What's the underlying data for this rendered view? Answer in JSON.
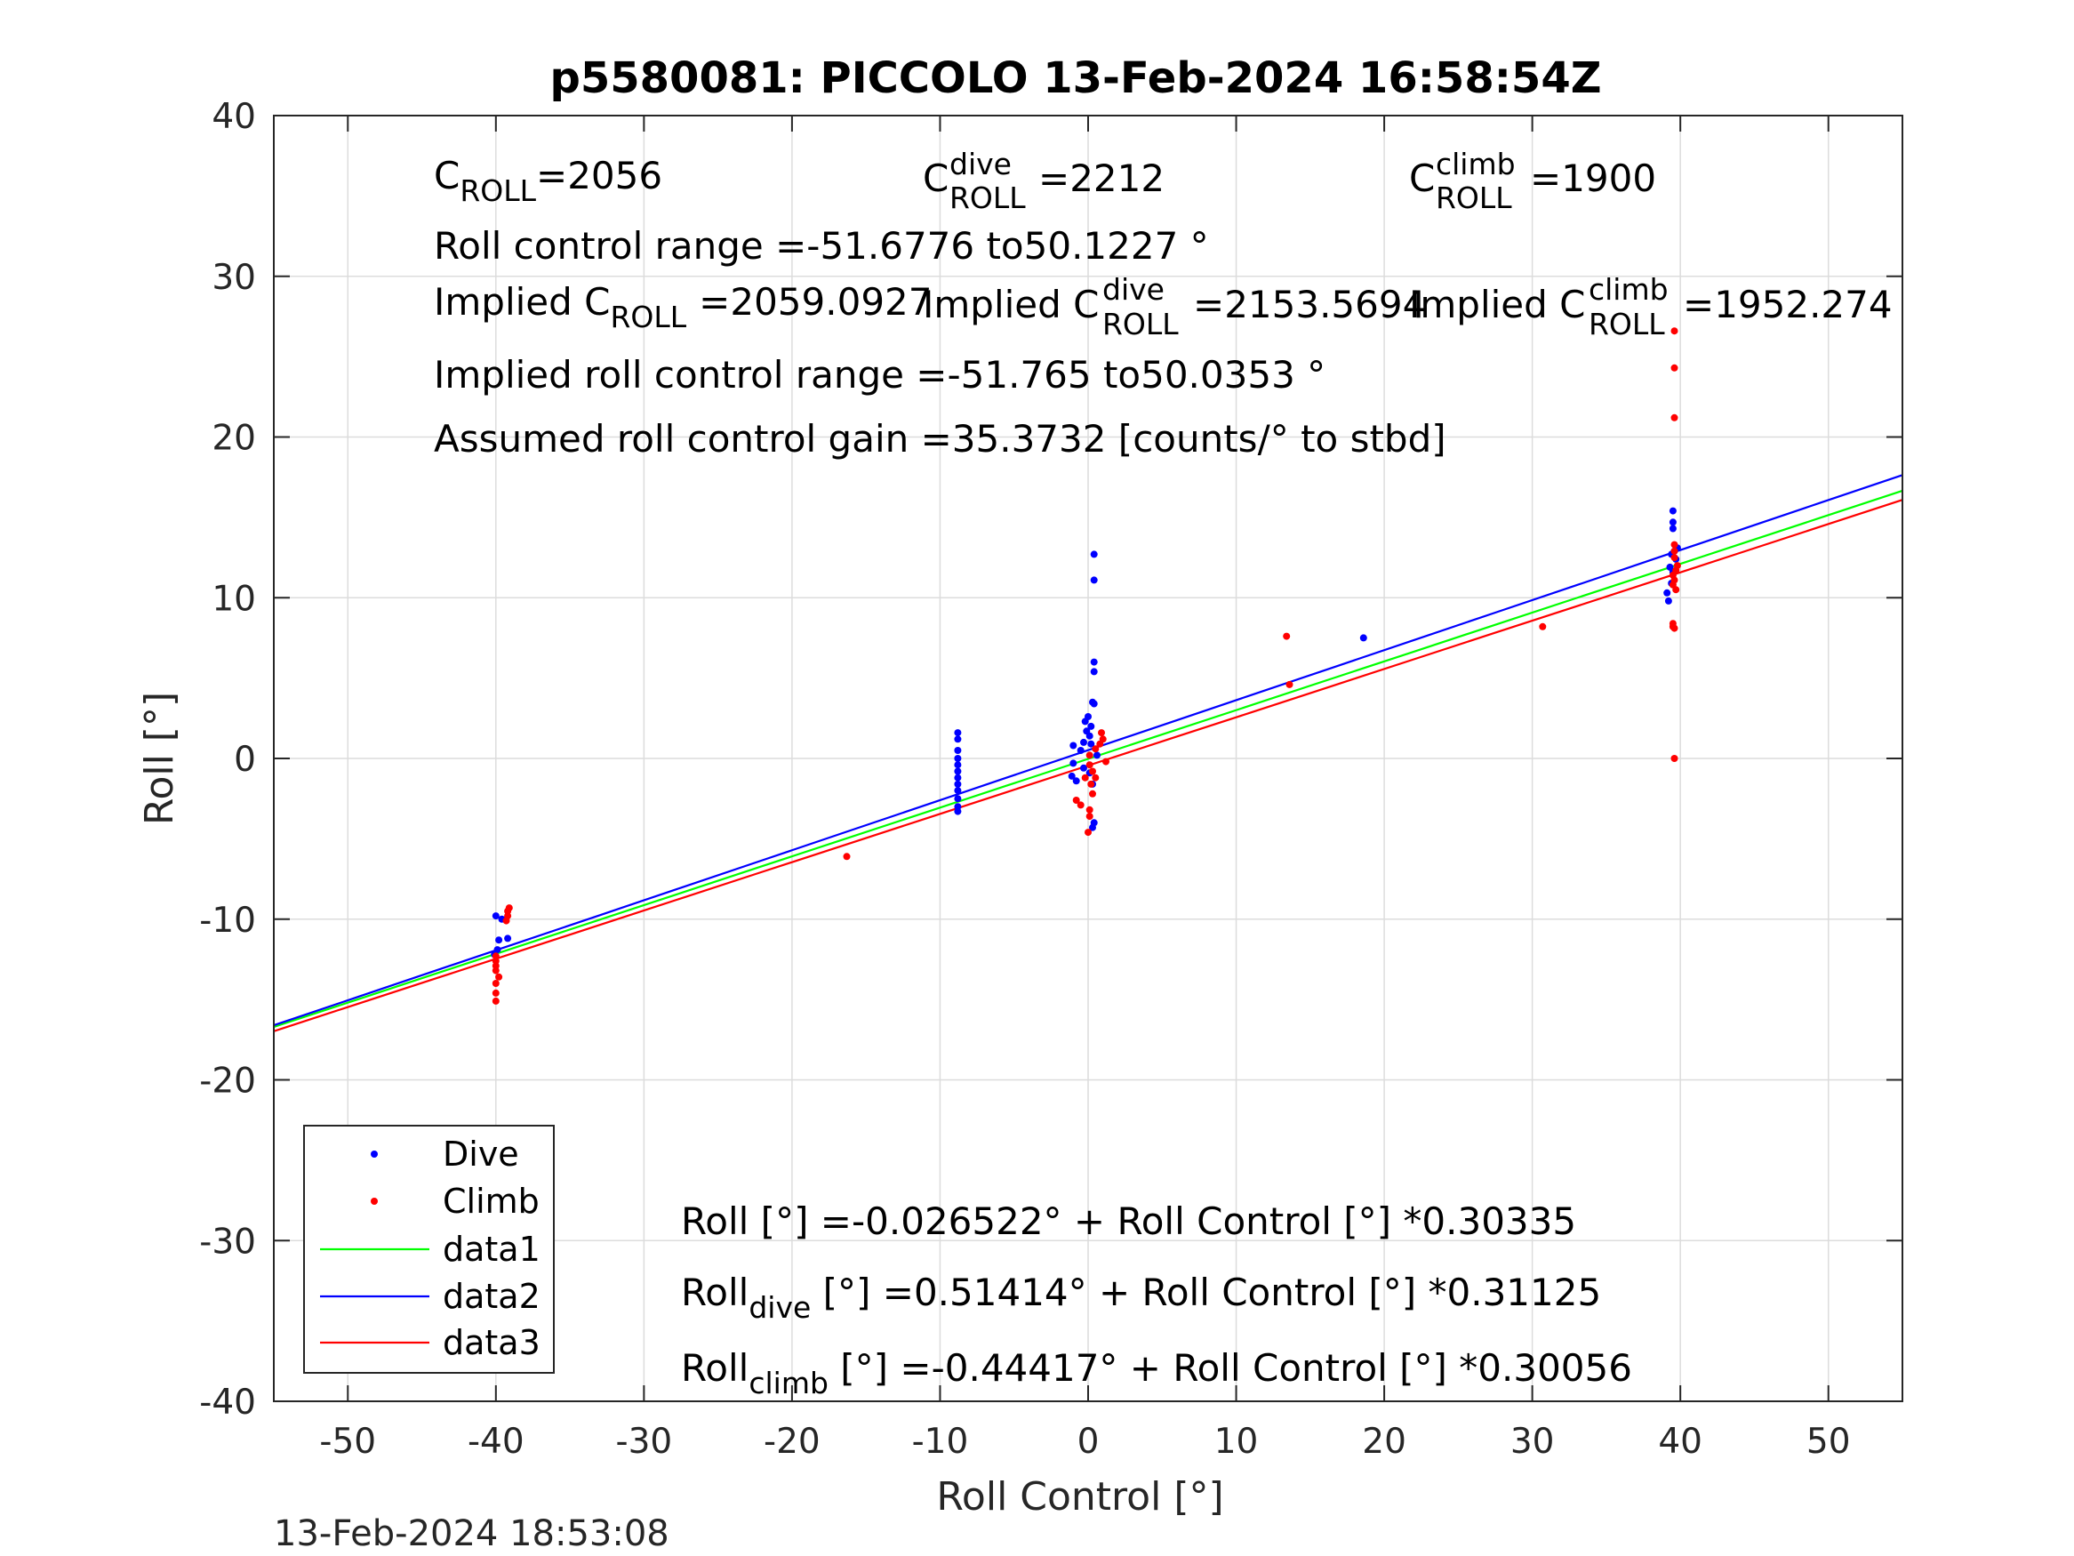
{
  "chart_data": {
    "type": "scatter",
    "title": "p5580081: PICCOLO 13-Feb-2024 16:58:54Z",
    "xlabel": "Roll Control [°]",
    "ylabel": "Roll [°]",
    "xlim": [
      -55,
      55
    ],
    "ylim": [
      -40,
      40
    ],
    "xticks": [
      -50,
      -40,
      -30,
      -20,
      -10,
      0,
      10,
      20,
      30,
      40,
      50
    ],
    "yticks": [
      -40,
      -30,
      -20,
      -10,
      0,
      10,
      20,
      30,
      40
    ],
    "grid": true,
    "legend_location": "bottom-left",
    "legend": [
      "Dive",
      "Climb",
      "data1",
      "data2",
      "data3"
    ],
    "colors": {
      "dive": "#0000ff",
      "climb": "#ff0000",
      "data1": "#00ff00",
      "data2": "#0000ff",
      "data3": "#ff0000"
    },
    "series": [
      {
        "name": "Dive",
        "kind": "points",
        "points": [
          [
            -40,
            -9.8
          ],
          [
            -39.8,
            -11.3
          ],
          [
            -39.9,
            -11.9
          ],
          [
            -40.1,
            -12.2
          ],
          [
            -39.6,
            -10.0
          ],
          [
            -39.2,
            -11.2
          ],
          [
            -8.8,
            1.6
          ],
          [
            -8.8,
            1.2
          ],
          [
            -8.8,
            0.5
          ],
          [
            -8.8,
            0
          ],
          [
            -8.8,
            -0.4
          ],
          [
            -8.8,
            -0.8
          ],
          [
            -8.8,
            -1.2
          ],
          [
            -8.8,
            -1.6
          ],
          [
            -8.8,
            -2.0
          ],
          [
            -8.8,
            -2.5
          ],
          [
            -8.8,
            -3.0
          ],
          [
            -8.8,
            -3.3
          ],
          [
            0.4,
            12.7
          ],
          [
            0.4,
            11.1
          ],
          [
            0.4,
            6.0
          ],
          [
            0.4,
            5.4
          ],
          [
            0.3,
            3.5
          ],
          [
            0.4,
            3.4
          ],
          [
            0,
            2.6
          ],
          [
            -0.2,
            2.3
          ],
          [
            0.2,
            2.0
          ],
          [
            -0.1,
            1.7
          ],
          [
            0.1,
            1.4
          ],
          [
            -0.3,
            1.0
          ],
          [
            0.2,
            0.9
          ],
          [
            -1.0,
            0.8
          ],
          [
            -0.5,
            0.5
          ],
          [
            0.6,
            0.2
          ],
          [
            -1.0,
            -0.3
          ],
          [
            -0.3,
            -0.6
          ],
          [
            0.1,
            -0.9
          ],
          [
            -1.1,
            -1.1
          ],
          [
            -0.8,
            -1.4
          ],
          [
            0.3,
            -1.6
          ],
          [
            0.4,
            -4.0
          ],
          [
            0.3,
            -4.3
          ],
          [
            18.6,
            7.5
          ],
          [
            39.5,
            15.4
          ],
          [
            39.5,
            14.7
          ],
          [
            39.5,
            14.3
          ],
          [
            39.8,
            13.1
          ],
          [
            39.4,
            12.7
          ],
          [
            39.7,
            12.4
          ],
          [
            39.3,
            11.9
          ],
          [
            39.5,
            11.6
          ],
          [
            39.4,
            10.9
          ],
          [
            39.1,
            10.3
          ],
          [
            39.2,
            9.8
          ],
          [
            39.6,
            12.9
          ]
        ]
      },
      {
        "name": "Climb",
        "kind": "points",
        "points": [
          [
            -40,
            -12.3
          ],
          [
            -40,
            -12.6
          ],
          [
            -40,
            -12.9
          ],
          [
            -40,
            -13.2
          ],
          [
            -39.8,
            -13.6
          ],
          [
            -40,
            -14.0
          ],
          [
            -40,
            -14.6
          ],
          [
            -40,
            -15.1
          ],
          [
            -39.2,
            -9.5
          ],
          [
            -39.2,
            -9.8
          ],
          [
            -39.3,
            -10.1
          ],
          [
            -39.1,
            -9.3
          ],
          [
            -16.3,
            -6.1
          ],
          [
            -0.8,
            -2.6
          ],
          [
            -0.5,
            -2.9
          ],
          [
            0.1,
            -3.2
          ],
          [
            0.1,
            -3.6
          ],
          [
            0,
            -4.6
          ],
          [
            0.3,
            -2.2
          ],
          [
            0.2,
            -1.6
          ],
          [
            0.5,
            -1.2
          ],
          [
            0.3,
            -0.8
          ],
          [
            0.1,
            -0.4
          ],
          [
            0.9,
            1.6
          ],
          [
            1.0,
            1.2
          ],
          [
            0.8,
            0.9
          ],
          [
            0.5,
            0.6
          ],
          [
            0.1,
            0.2
          ],
          [
            1.2,
            -0.2
          ],
          [
            -0.2,
            -1.2
          ],
          [
            13.4,
            7.6
          ],
          [
            13.6,
            4.6
          ],
          [
            30.7,
            8.2
          ],
          [
            39.6,
            26.6
          ],
          [
            39.6,
            24.3
          ],
          [
            39.6,
            21.2
          ],
          [
            39.6,
            13.3
          ],
          [
            39.6,
            12.9
          ],
          [
            39.6,
            12.5
          ],
          [
            39.8,
            12.0
          ],
          [
            39.7,
            11.7
          ],
          [
            39.5,
            11.4
          ],
          [
            39.6,
            11.1
          ],
          [
            39.5,
            10.8
          ],
          [
            39.7,
            10.5
          ],
          [
            39.5,
            8.4
          ],
          [
            39.6,
            8.1
          ],
          [
            39.5,
            8.2
          ],
          [
            39.6,
            0
          ]
        ]
      },
      {
        "name": "data1",
        "kind": "line",
        "intercept": -0.026522,
        "slope": 0.30335
      },
      {
        "name": "data2",
        "kind": "line",
        "intercept": 0.51414,
        "slope": 0.31125
      },
      {
        "name": "data3",
        "kind": "line",
        "intercept": -0.44417,
        "slope": 0.30056
      }
    ],
    "annotations": {
      "c_roll": {
        "main": "C",
        "sub": "ROLL",
        "value": "=2056"
      },
      "c_roll_dive": {
        "main": "C",
        "sup": "dive",
        "sub": "ROLL",
        "value": "=2212"
      },
      "c_roll_climb": {
        "main": "C",
        "sup": "climb",
        "sub": "ROLL",
        "value": "=1900"
      },
      "control_range": "Roll control range =-51.6776 to50.1227 °",
      "implied_c_roll": {
        "prefix": "Implied C",
        "sub": "ROLL",
        "value": "=2059.0927"
      },
      "implied_c_roll_dive": {
        "prefix": "Implied C",
        "sup": "dive",
        "sub": "ROLL",
        "value": "=2153.5694"
      },
      "implied_c_roll_climb": {
        "prefix": "Implied C",
        "sup": "climb",
        "sub": "ROLL",
        "value": "=1952.274"
      },
      "implied_range": "Implied roll control range =-51.765 to50.0353 °",
      "gain": "Assumed roll control gain =35.3732 [counts/° to stbd]",
      "fit_all": "Roll [°] =-0.026522° + Roll Control [°] *0.30335",
      "fit_dive": {
        "main": "Roll",
        "sub": "dive",
        "rest": " [°] =0.51414° + Roll Control [°] *0.31125"
      },
      "fit_climb": {
        "main": "Roll",
        "sub": "climb",
        "rest": " [°] =-0.44417° + Roll Control [°] *0.30056"
      }
    },
    "timestamp": "13-Feb-2024 18:53:08"
  }
}
